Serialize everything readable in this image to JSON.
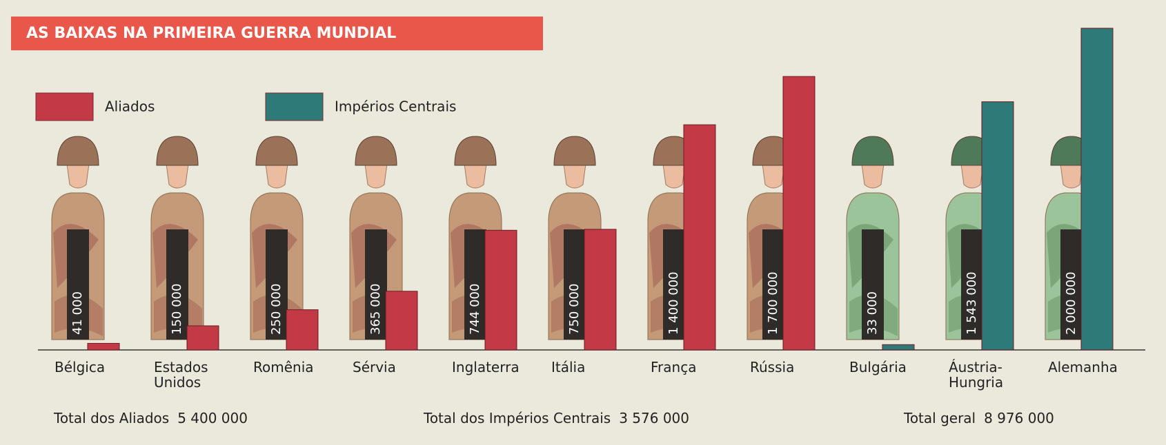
{
  "chart_data": {
    "type": "bar",
    "title": "AS BAIXAS NA PRIMEIRA GUERRA MUNDIAL",
    "categories": [
      "Bélgica",
      "Estados Unidos",
      "Romênia",
      "Sérvia",
      "Inglaterra",
      "Itália",
      "França",
      "Rússia",
      "Bulgária",
      "Áustria-Hungria",
      "Alemanha"
    ],
    "series": [
      {
        "name": "Aliados",
        "color": "#c23a45",
        "values": [
          41000,
          150000,
          250000,
          365000,
          744000,
          750000,
          1400000,
          1700000,
          null,
          null,
          null
        ],
        "value_labels": [
          "41 000",
          "150 000",
          "250 000",
          "365 000",
          "744 000",
          "750 000",
          "1 400 000",
          "1 700 000",
          null,
          null,
          null
        ]
      },
      {
        "name": "Impérios Centrais",
        "color": "#2d7a78",
        "values": [
          null,
          null,
          null,
          null,
          null,
          null,
          null,
          null,
          33000,
          1543000,
          2000000
        ],
        "value_labels": [
          null,
          null,
          null,
          null,
          null,
          null,
          null,
          null,
          "33 000",
          "1 543 000",
          "2 000 000"
        ]
      }
    ],
    "totals": [
      {
        "label": "Total dos Aliados",
        "value": 5400000,
        "value_label": "5 400 000"
      },
      {
        "label": "Total dos Impérios Centrais",
        "value": 3576000,
        "value_label": "3 576 000"
      },
      {
        "label": "Total geral",
        "value": 8976000,
        "value_label": "8 976 000"
      }
    ]
  }
}
